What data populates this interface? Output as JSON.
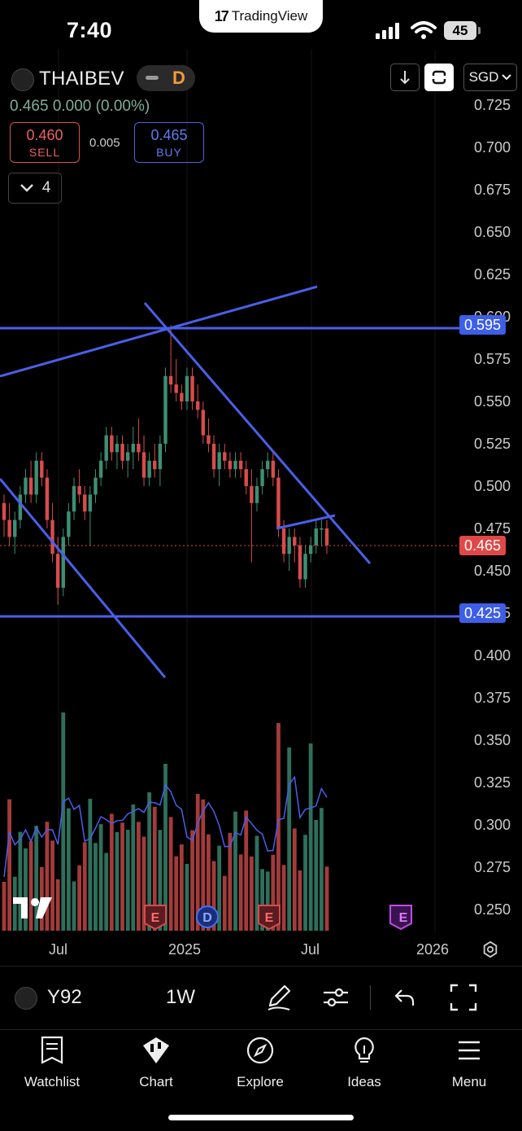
{
  "status_bar": {
    "time": "7:40",
    "battery": "45"
  },
  "app_pill": {
    "logo": "17",
    "name": "TradingView"
  },
  "symbol": {
    "name": "THAIBEV",
    "interval_badge": "D"
  },
  "quote": {
    "price_line": "0.465  0.000 (0.00%)",
    "sell_value": "0.460",
    "sell_label": "SELL",
    "spread": "0.005",
    "buy_value": "0.465",
    "buy_label": "BUY"
  },
  "indicators_count": "4",
  "header_buttons": {
    "currency": "SGD"
  },
  "price_axis": {
    "ticks": [
      "0.725",
      "0.700",
      "0.675",
      "0.650",
      "0.625",
      "0.600",
      "0.575",
      "0.550",
      "0.525",
      "0.500",
      "0.475",
      "0.450",
      "0.425",
      "0.400",
      "0.375",
      "0.350",
      "0.325",
      "0.300",
      "0.275",
      "0.250"
    ],
    "labels": [
      {
        "text": "0.595",
        "color": "#3d5ee8"
      },
      {
        "text": "0.465",
        "color": "#e04848"
      },
      {
        "text": "0.425",
        "color": "#3d5ee8"
      }
    ]
  },
  "time_axis": {
    "ticks": [
      "Jul",
      "2025",
      "Jul",
      "2026"
    ]
  },
  "event_markers": [
    "E",
    "D",
    "E",
    "E"
  ],
  "colors": {
    "up": "#3d8f73",
    "down": "#d94b4b",
    "trendline": "#4a5fe8",
    "volume_up": "#2f6f5b",
    "volume_down": "#a33b3b"
  },
  "chart_data": {
    "type": "candlestick",
    "interval": "1W",
    "price_axis_range": [
      0.25,
      0.725
    ],
    "last_price": 0.465,
    "horizontal_levels": [
      0.595,
      0.425
    ],
    "x_ticks": [
      "Jul",
      "2025",
      "Jul",
      "2026"
    ],
    "candles": [
      [
        0.49,
        0.495,
        0.47,
        0.48
      ],
      [
        0.48,
        0.49,
        0.465,
        0.47
      ],
      [
        0.47,
        0.485,
        0.46,
        0.48
      ],
      [
        0.48,
        0.5,
        0.475,
        0.495
      ],
      [
        0.495,
        0.51,
        0.49,
        0.505
      ],
      [
        0.505,
        0.515,
        0.49,
        0.495
      ],
      [
        0.495,
        0.52,
        0.49,
        0.515
      ],
      [
        0.515,
        0.52,
        0.5,
        0.505
      ],
      [
        0.505,
        0.51,
        0.475,
        0.48
      ],
      [
        0.48,
        0.49,
        0.455,
        0.46
      ],
      [
        0.46,
        0.47,
        0.43,
        0.44
      ],
      [
        0.44,
        0.475,
        0.435,
        0.47
      ],
      [
        0.47,
        0.49,
        0.465,
        0.485
      ],
      [
        0.485,
        0.505,
        0.48,
        0.5
      ],
      [
        0.5,
        0.51,
        0.49,
        0.495
      ],
      [
        0.495,
        0.5,
        0.48,
        0.485
      ],
      [
        0.485,
        0.5,
        0.465,
        0.495
      ],
      [
        0.495,
        0.51,
        0.49,
        0.505
      ],
      [
        0.505,
        0.52,
        0.5,
        0.515
      ],
      [
        0.515,
        0.535,
        0.51,
        0.53
      ],
      [
        0.53,
        0.535,
        0.515,
        0.52
      ],
      [
        0.52,
        0.53,
        0.51,
        0.525
      ],
      [
        0.525,
        0.53,
        0.51,
        0.515
      ],
      [
        0.515,
        0.525,
        0.505,
        0.52
      ],
      [
        0.52,
        0.535,
        0.51,
        0.525
      ],
      [
        0.525,
        0.54,
        0.515,
        0.52
      ],
      [
        0.52,
        0.53,
        0.5,
        0.505
      ],
      [
        0.505,
        0.52,
        0.5,
        0.515
      ],
      [
        0.515,
        0.525,
        0.505,
        0.51
      ],
      [
        0.51,
        0.53,
        0.5,
        0.525
      ],
      [
        0.525,
        0.57,
        0.52,
        0.565
      ],
      [
        0.565,
        0.595,
        0.555,
        0.56
      ],
      [
        0.56,
        0.575,
        0.55,
        0.555
      ],
      [
        0.555,
        0.56,
        0.545,
        0.55
      ],
      [
        0.55,
        0.57,
        0.545,
        0.565
      ],
      [
        0.565,
        0.57,
        0.545,
        0.55
      ],
      [
        0.55,
        0.56,
        0.54,
        0.545
      ],
      [
        0.545,
        0.55,
        0.525,
        0.53
      ],
      [
        0.53,
        0.54,
        0.52,
        0.525
      ],
      [
        0.525,
        0.53,
        0.505,
        0.51
      ],
      [
        0.51,
        0.525,
        0.5,
        0.52
      ],
      [
        0.52,
        0.525,
        0.51,
        0.515
      ],
      [
        0.515,
        0.52,
        0.505,
        0.51
      ],
      [
        0.51,
        0.52,
        0.505,
        0.515
      ],
      [
        0.515,
        0.52,
        0.505,
        0.51
      ],
      [
        0.51,
        0.515,
        0.495,
        0.5
      ],
      [
        0.5,
        0.51,
        0.455,
        0.49
      ],
      [
        0.49,
        0.505,
        0.485,
        0.5
      ],
      [
        0.5,
        0.515,
        0.495,
        0.51
      ],
      [
        0.51,
        0.52,
        0.505,
        0.515
      ],
      [
        0.515,
        0.52,
        0.5,
        0.505
      ],
      [
        0.505,
        0.51,
        0.47,
        0.475
      ],
      [
        0.475,
        0.48,
        0.455,
        0.46
      ],
      [
        0.46,
        0.475,
        0.45,
        0.47
      ],
      [
        0.47,
        0.475,
        0.455,
        0.465
      ],
      [
        0.465,
        0.47,
        0.44,
        0.445
      ],
      [
        0.445,
        0.465,
        0.44,
        0.46
      ],
      [
        0.46,
        0.47,
        0.455,
        0.465
      ],
      [
        0.465,
        0.48,
        0.46,
        0.475
      ],
      [
        0.475,
        0.48,
        0.465,
        0.475
      ],
      [
        0.475,
        0.48,
        0.46,
        0.465
      ]
    ]
  }
}
